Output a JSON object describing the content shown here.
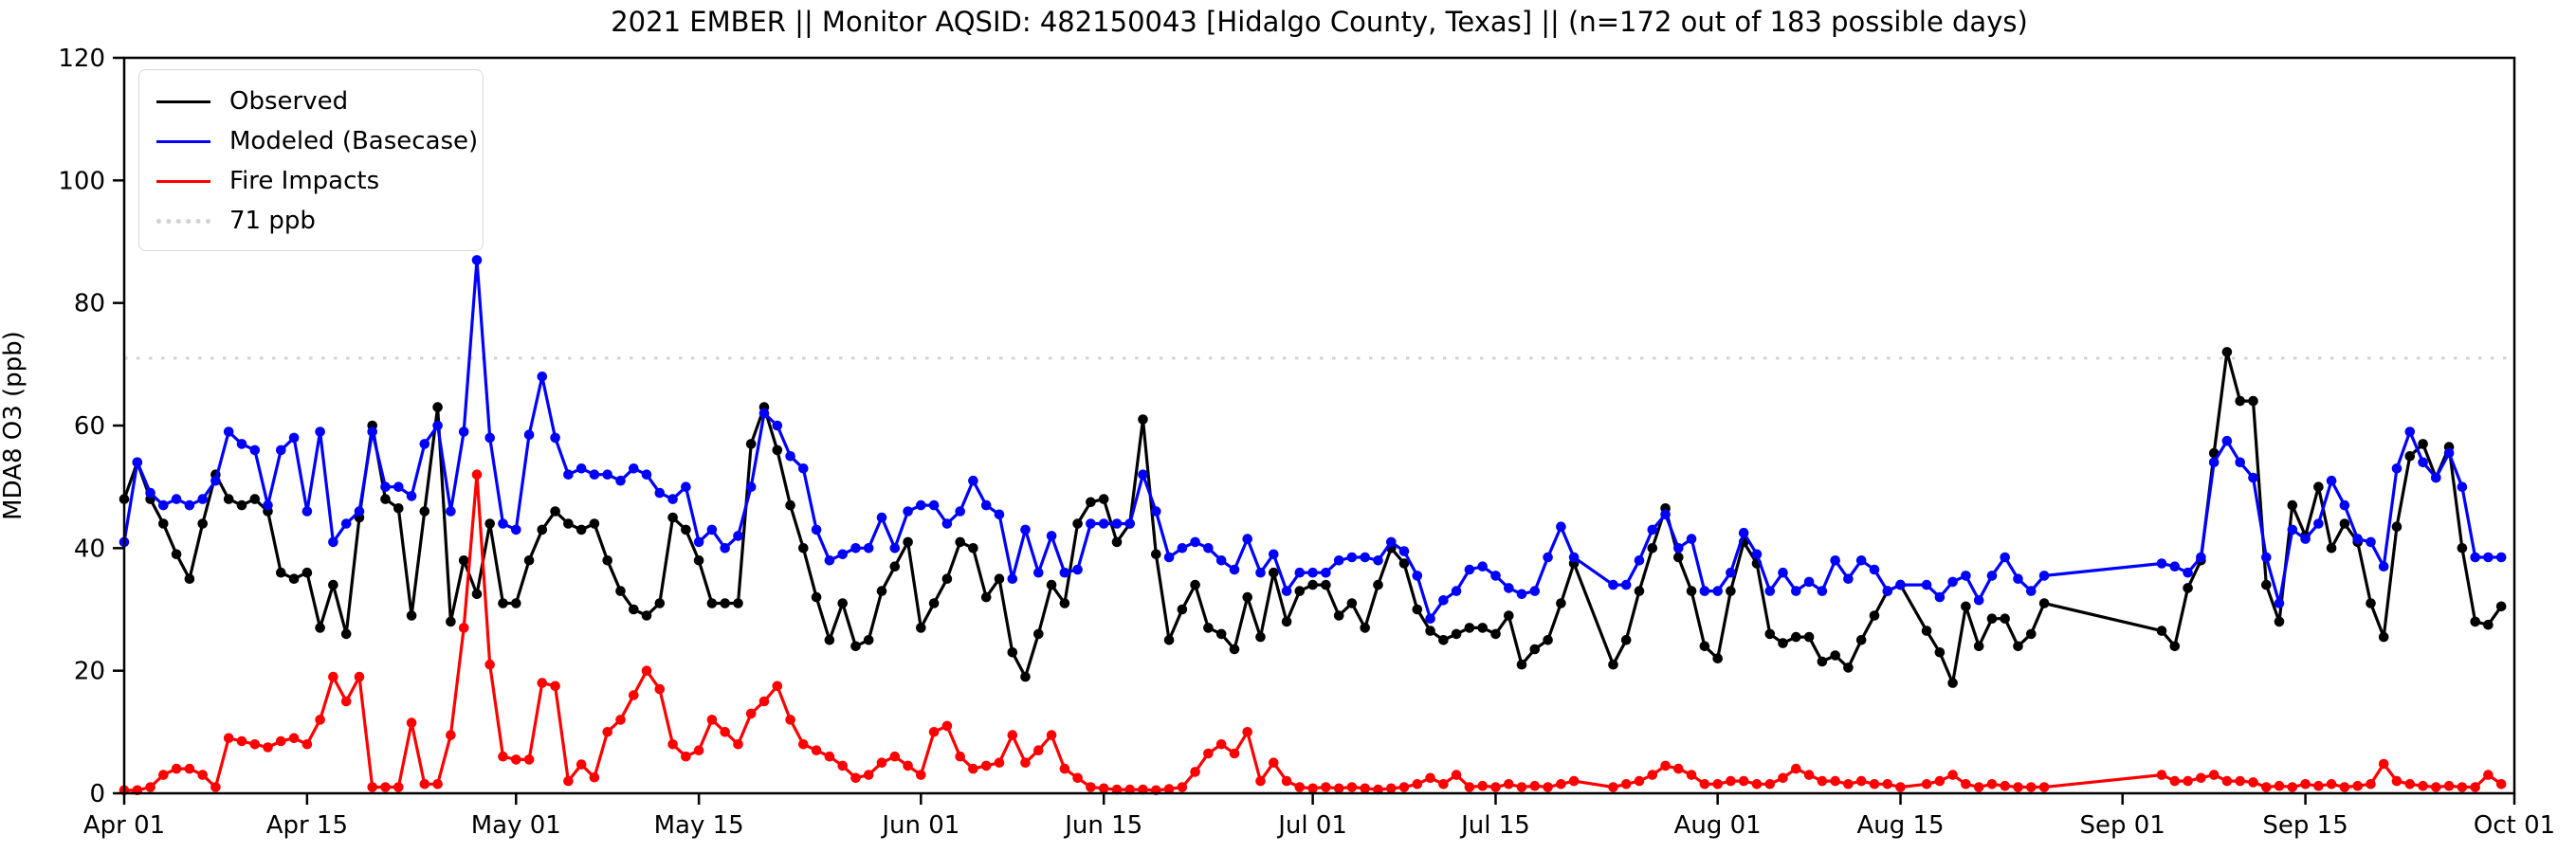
{
  "title": "2021 EMBER || Monitor AQSID: 482150043 [Hidalgo County, Texas] || (n=172 out of 183 possible days)",
  "axes": {
    "ylabel": "MDA8 O3 (ppb)",
    "yticks": [
      0,
      20,
      40,
      60,
      80,
      100,
      120
    ],
    "ylim": [
      0,
      120
    ],
    "xlim_days": [
      0,
      183
    ],
    "xticks": [
      {
        "label": "Apr 01",
        "day": 0
      },
      {
        "label": "Apr 15",
        "day": 14
      },
      {
        "label": "May 01",
        "day": 30
      },
      {
        "label": "May 15",
        "day": 44
      },
      {
        "label": "Jun 01",
        "day": 61
      },
      {
        "label": "Jun 15",
        "day": 75
      },
      {
        "label": "Jul 01",
        "day": 91
      },
      {
        "label": "Jul 15",
        "day": 105
      },
      {
        "label": "Aug 01",
        "day": 122
      },
      {
        "label": "Aug 15",
        "day": 136
      },
      {
        "label": "Sep 01",
        "day": 153
      },
      {
        "label": "Sep 15",
        "day": 167
      },
      {
        "label": "Oct 01",
        "day": 183
      }
    ]
  },
  "legend": {
    "items": [
      {
        "label": "Observed",
        "color": "#000000",
        "style": "solid"
      },
      {
        "label": "Modeled (Basecase)",
        "color": "#0000ff",
        "style": "solid"
      },
      {
        "label": "Fire Impacts",
        "color": "#ff0000",
        "style": "solid"
      },
      {
        "label": "71 ppb",
        "color": "#d2d2d2",
        "style": "dotted"
      }
    ]
  },
  "threshold": {
    "value_ppb": 71,
    "color": "#d2d2d2"
  },
  "chart_data": {
    "type": "line",
    "x_unit": "days since Apr 01, 2021",
    "x_start_label": "Apr 01",
    "x_end_label": "Oct 01",
    "note_visible_gap": "no markers Aug 27 - Sep 03 (and Jul 22-23, Aug 16); lines connect straight across missing days",
    "series": [
      {
        "name": "Observed",
        "color": "#000000",
        "values": [
          48,
          54,
          48,
          44,
          39,
          35,
          44,
          52,
          48,
          47,
          48,
          46,
          36,
          35,
          36,
          27,
          34,
          26,
          45,
          60,
          48,
          46.5,
          29,
          46,
          63,
          28,
          38,
          32.5,
          44,
          31,
          31,
          38,
          43,
          46,
          44,
          43,
          44,
          38,
          33,
          30,
          29,
          31,
          45,
          43,
          38,
          31,
          31,
          31,
          57,
          63,
          56,
          47,
          40,
          32,
          25,
          31,
          24,
          25,
          33,
          37,
          41,
          27,
          31,
          35,
          41,
          40,
          32,
          35,
          23,
          19,
          26,
          34,
          31,
          44,
          47.5,
          48,
          41,
          44,
          61,
          39,
          25,
          30,
          34,
          27,
          26,
          23.5,
          32,
          25.5,
          36,
          28,
          33,
          34,
          34,
          29,
          31,
          27,
          34,
          40,
          37.5,
          30,
          26.5,
          25,
          26,
          27,
          27,
          26,
          29,
          21,
          23.5,
          25,
          31,
          37.5,
          null,
          null,
          21,
          25,
          33,
          40,
          46.5,
          38.5,
          33,
          24,
          22,
          33,
          41,
          37.5,
          26,
          24.5,
          25.5,
          25.5,
          21.5,
          22.5,
          20.5,
          25,
          29,
          33,
          34,
          null,
          26.5,
          23,
          18,
          30.5,
          24,
          28.5,
          28.5,
          24,
          26,
          31,
          null,
          null,
          null,
          null,
          null,
          null,
          null,
          null,
          26.5,
          24,
          33.5,
          38,
          55.5,
          72,
          64,
          64,
          34,
          28,
          47,
          42,
          50,
          40,
          44,
          41,
          31,
          25.5,
          43.5,
          55,
          57,
          51.5,
          56.5,
          40,
          28,
          27.5,
          30.5
        ]
      },
      {
        "name": "Modeled (Basecase)",
        "color": "#0000ff",
        "values": [
          41,
          54,
          49,
          47,
          48,
          47,
          48,
          51,
          59,
          57,
          56,
          47,
          56,
          58,
          46,
          59,
          41,
          44,
          46,
          59,
          50,
          50,
          48.5,
          57,
          60,
          46,
          59,
          87,
          58,
          44,
          43,
          58.5,
          68,
          58,
          52,
          53,
          52,
          52,
          51,
          53,
          52,
          49,
          48,
          50,
          41,
          43,
          40,
          42,
          50,
          62,
          60,
          55,
          53,
          43,
          38,
          39,
          40,
          40,
          45,
          40,
          46,
          47,
          47,
          44,
          46,
          51,
          47,
          45.5,
          35,
          43,
          36,
          42,
          36,
          36.5,
          44,
          44,
          44,
          44,
          52,
          46,
          38.5,
          40,
          41,
          40,
          38,
          36.5,
          41.5,
          36,
          39,
          33,
          36,
          36,
          36,
          38,
          38.5,
          38.5,
          38,
          41,
          39.5,
          35.5,
          28.5,
          31.5,
          33,
          36.5,
          37,
          35.5,
          33.5,
          32.5,
          33,
          38.5,
          43.5,
          38.5,
          null,
          null,
          34,
          34,
          38,
          43,
          45.5,
          40,
          41.5,
          33,
          33,
          36,
          42.5,
          39,
          33,
          36,
          33,
          34.5,
          33,
          38,
          35,
          38,
          36.5,
          33,
          34,
          null,
          34,
          32,
          34.5,
          35.5,
          31.5,
          35.5,
          38.5,
          35,
          33,
          35.5,
          null,
          null,
          null,
          null,
          null,
          null,
          null,
          null,
          37.5,
          37,
          36,
          38.5,
          54,
          57.5,
          54,
          51.5,
          38.5,
          31,
          43,
          41.5,
          44,
          51,
          47,
          41.5,
          41,
          37,
          53,
          59,
          54,
          51.5,
          55.5,
          50,
          38.5,
          38.5,
          38.5
        ]
      },
      {
        "name": "Fire Impacts",
        "color": "#ff0000",
        "values": [
          0.5,
          0.5,
          1,
          3,
          4,
          4,
          3,
          1,
          9,
          8.5,
          8,
          7.5,
          8.5,
          9,
          8,
          12,
          19,
          15,
          19,
          1,
          1,
          1,
          11.5,
          1.5,
          1.5,
          9.5,
          27,
          52,
          21,
          6,
          5.5,
          5.5,
          18,
          17.5,
          2,
          4.7,
          2.6,
          10,
          12,
          16,
          20,
          17,
          8,
          6,
          7,
          12,
          10,
          8,
          13,
          15,
          17.5,
          12,
          8,
          7,
          6,
          4.5,
          2.5,
          3,
          5,
          6,
          4.5,
          3,
          10,
          11,
          6,
          4,
          4.5,
          5,
          9.5,
          5,
          7,
          9.5,
          4,
          2.5,
          1,
          0.8,
          0.6,
          0.6,
          0.6,
          0.5,
          0.7,
          1,
          3.5,
          6.5,
          8,
          6.5,
          10,
          2,
          5,
          2,
          1,
          0.8,
          1,
          0.8,
          1,
          0.8,
          0.6,
          0.8,
          1,
          1.5,
          2.5,
          1.5,
          3,
          1,
          1.2,
          1,
          1.5,
          1,
          1.2,
          1,
          1.5,
          2,
          null,
          null,
          1,
          1.5,
          2,
          3,
          4.5,
          4,
          3,
          1.5,
          1.5,
          2,
          2,
          1.5,
          1.5,
          2.5,
          4,
          3,
          2,
          2,
          1.5,
          2,
          1.5,
          1.5,
          1,
          null,
          1.5,
          2,
          3,
          1.5,
          1,
          1.5,
          1.2,
          1,
          1,
          1,
          null,
          null,
          null,
          null,
          null,
          null,
          null,
          null,
          3,
          2,
          2,
          2.5,
          3,
          2,
          2,
          1.8,
          1,
          1.2,
          1,
          1.5,
          1.2,
          1.5,
          1,
          1.2,
          1.5,
          4.8,
          2,
          1.5,
          1.2,
          1,
          1.2,
          1,
          1,
          3,
          1.5
        ]
      }
    ],
    "title": "2021 EMBER || Monitor AQSID: 482150043 [Hidalgo County, Texas] || (n=172 out of 183 possible days)",
    "xlabel": "",
    "ylabel": "MDA8 O3 (ppb)",
    "ylim": [
      0,
      120
    ],
    "grid": false,
    "legend_position": "upper-left",
    "threshold_line": 71
  }
}
